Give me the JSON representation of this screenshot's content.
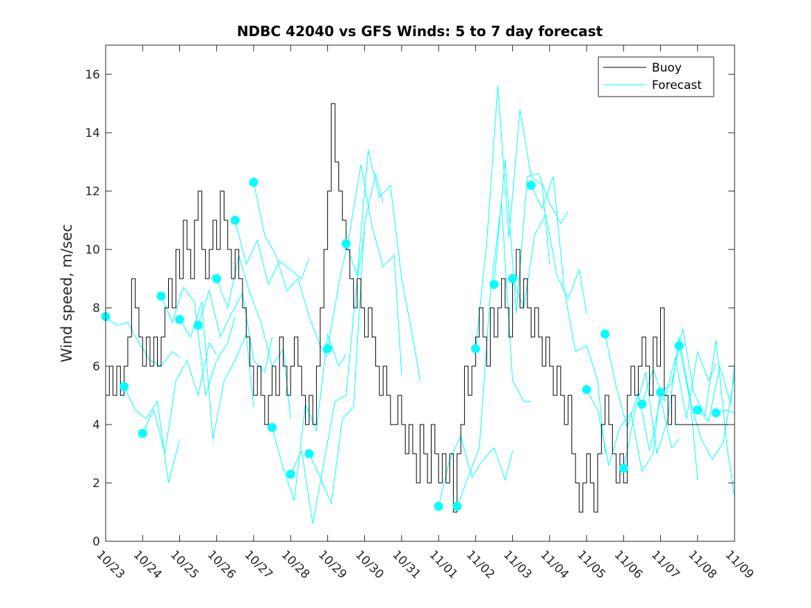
{
  "chart_data": {
    "type": "line",
    "title": "NDBC 42040 vs GFS Winds: 5 to 7 day forecast",
    "xlabel": "",
    "ylabel": "Wind speed, m/sec",
    "ylim": [
      0,
      17
    ],
    "yticks": [
      0,
      2,
      4,
      6,
      8,
      10,
      12,
      14,
      16
    ],
    "xlim": [
      0,
      17
    ],
    "x_tick_labels": [
      "10/23",
      "10/24",
      "10/25",
      "10/26",
      "10/27",
      "10/28",
      "10/29",
      "10/30",
      "10/31",
      "11/01",
      "11/02",
      "11/03",
      "11/04",
      "11/05",
      "11/06",
      "11/07",
      "11/08",
      "11/09"
    ],
    "x_units": "days since 10/23",
    "legend": {
      "position": "top-right",
      "entries": [
        "Buoy",
        "Forecast"
      ]
    },
    "colors": {
      "buoy": "#000000",
      "forecast": "#00FFFF",
      "axis": "#262626"
    },
    "buoy": {
      "name": "Buoy",
      "x": [
        0,
        0.1,
        0.2,
        0.3,
        0.4,
        0.5,
        0.6,
        0.7,
        0.8,
        0.9,
        1.0,
        1.1,
        1.2,
        1.3,
        1.4,
        1.5,
        1.6,
        1.7,
        1.8,
        1.9,
        2.0,
        2.1,
        2.2,
        2.3,
        2.4,
        2.5,
        2.6,
        2.7,
        2.8,
        2.9,
        3.0,
        3.1,
        3.2,
        3.3,
        3.4,
        3.5,
        3.6,
        3.7,
        3.8,
        3.9,
        4.0,
        4.1,
        4.2,
        4.3,
        4.4,
        4.5,
        4.6,
        4.7,
        4.8,
        4.9,
        5.0,
        5.1,
        5.2,
        5.3,
        5.4,
        5.5,
        5.6,
        5.7,
        5.8,
        5.9,
        6.0,
        6.1,
        6.2,
        6.3,
        6.4,
        6.5,
        6.6,
        6.7,
        6.8,
        6.9,
        7.0,
        7.1,
        7.2,
        7.3,
        7.4,
        7.5,
        7.6,
        7.7,
        7.8,
        7.9,
        8.0,
        8.1,
        8.2,
        8.3,
        8.4,
        8.5,
        8.6,
        8.7,
        8.8,
        8.9,
        9.0,
        9.1,
        9.2,
        9.3,
        9.4,
        9.5,
        9.6,
        9.7,
        9.8,
        9.9,
        10.0,
        10.1,
        10.2,
        10.3,
        10.4,
        10.5,
        10.6,
        10.7,
        10.8,
        10.9,
        11.0,
        11.1,
        11.2,
        11.3,
        11.4,
        11.5,
        11.6,
        11.7,
        11.8,
        11.9,
        12.0,
        12.1,
        12.2,
        12.3,
        12.4,
        12.5,
        12.6,
        12.7,
        12.8,
        12.9,
        13.0,
        13.1,
        13.2,
        13.3,
        13.4,
        13.5,
        13.6,
        13.7,
        13.8,
        13.9,
        14.0,
        14.1,
        14.2,
        14.3,
        14.4,
        14.5,
        14.6,
        14.7,
        14.8,
        14.9,
        15.0,
        15.1,
        15.2,
        15.3,
        15.4,
        15.5,
        15.6,
        15.7,
        15.8,
        15.9,
        16.0,
        16.1,
        16.2,
        16.3,
        16.4,
        16.5,
        16.6,
        16.7,
        16.8,
        16.9,
        17.0
      ],
      "y": [
        5,
        6,
        5,
        6,
        5,
        6,
        7,
        9,
        8,
        7,
        6,
        7,
        6,
        7,
        6,
        7,
        8,
        9,
        8,
        10,
        9,
        11,
        10,
        9,
        11,
        12,
        10,
        9,
        10,
        11,
        10,
        12,
        11,
        10,
        9,
        10,
        9,
        8,
        7,
        6,
        5,
        6,
        5,
        4,
        5,
        6,
        5,
        7,
        6,
        5,
        6,
        7,
        6,
        5,
        4,
        5,
        4,
        6,
        8,
        10,
        12,
        15,
        13,
        12,
        11,
        10,
        9,
        8,
        9,
        8,
        7,
        8,
        7,
        6,
        5,
        6,
        5,
        4,
        4,
        5,
        4,
        3,
        4,
        3,
        2,
        4,
        3,
        2,
        4,
        3,
        2,
        3,
        2,
        3,
        1,
        3,
        4,
        6,
        5,
        6,
        7,
        8,
        7,
        6,
        8,
        7,
        8,
        9,
        8,
        7,
        9,
        10,
        8,
        9,
        8,
        7,
        8,
        7,
        6,
        7,
        6,
        5,
        6,
        5,
        4,
        5,
        3,
        2,
        1,
        2,
        3,
        2,
        1,
        3,
        4,
        5,
        4,
        3,
        2,
        3,
        2,
        5,
        6,
        5,
        6,
        7,
        6,
        5,
        7,
        6,
        8,
        5,
        4,
        5,
        4,
        4,
        4,
        4,
        4,
        4,
        4,
        4,
        4,
        4,
        4,
        4,
        4,
        4,
        4,
        4,
        4
      ]
    },
    "forecasts": [
      {
        "x": [
          0,
          0.3,
          0.6,
          0.9,
          1.2,
          1.5,
          1.8,
          2.0
        ],
        "y": [
          7.7,
          7.4,
          7.5,
          6.8,
          6.2,
          6.0,
          6.5,
          6.3
        ]
      },
      {
        "x": [
          0.5,
          0.8,
          1.1,
          1.4,
          1.7,
          2.0
        ],
        "y": [
          5.3,
          4.5,
          4.2,
          4.8,
          2.0,
          3.5
        ]
      },
      {
        "x": [
          1.0,
          1.3,
          1.6,
          1.9,
          2.2,
          2.5,
          2.8,
          3.0
        ],
        "y": [
          3.7,
          4.5,
          3.0,
          5.5,
          6.2,
          5.0,
          6.8,
          6.4
        ]
      },
      {
        "x": [
          1.5,
          1.8,
          2.1,
          2.4,
          2.7,
          3.0,
          3.3,
          3.5
        ],
        "y": [
          8.4,
          7.5,
          8.7,
          8.2,
          5.0,
          6.2,
          6.8,
          7.7
        ]
      },
      {
        "x": [
          2.0,
          2.3,
          2.6,
          2.9,
          3.2,
          3.5,
          3.8,
          4.0
        ],
        "y": [
          7.6,
          7.0,
          8.2,
          3.5,
          5.5,
          6.2,
          7.1,
          4.6
        ]
      },
      {
        "x": [
          2.5,
          2.8,
          3.1,
          3.4,
          3.7,
          4.0,
          4.3,
          4.5
        ],
        "y": [
          7.4,
          8.6,
          7.0,
          7.8,
          8.5,
          6.2,
          5.8,
          7.0
        ]
      },
      {
        "x": [
          3.0,
          3.3,
          3.6,
          3.9,
          4.2,
          4.5,
          4.8,
          5.0
        ],
        "y": [
          9.0,
          8.0,
          9.8,
          8.5,
          7.5,
          6.0,
          6.6,
          4.2
        ]
      },
      {
        "x": [
          3.5,
          3.8,
          4.1,
          4.4,
          4.7,
          5.0,
          5.3,
          5.5
        ],
        "y": [
          11.0,
          9.5,
          10.3,
          8.8,
          9.6,
          9.3,
          9.0,
          9.7
        ]
      },
      {
        "x": [
          4.0,
          4.3,
          4.6,
          4.9,
          5.2,
          5.5,
          5.8,
          6.0
        ],
        "y": [
          12.3,
          10.5,
          9.8,
          8.6,
          9.0,
          7.7,
          6.7,
          6.3
        ]
      },
      {
        "x": [
          4.5,
          4.8,
          5.1,
          5.4,
          5.7,
          6.0,
          6.3,
          6.5
        ],
        "y": [
          3.9,
          2.5,
          1.4,
          4.7,
          3.8,
          7.1,
          6.0,
          6.4
        ]
      },
      {
        "x": [
          5.0,
          5.3,
          5.6,
          5.9,
          6.2,
          6.5,
          6.8,
          7.0
        ],
        "y": [
          2.3,
          3.1,
          0.6,
          2.7,
          4.8,
          5.0,
          9.0,
          10.6
        ]
      },
      {
        "x": [
          5.5,
          5.8,
          6.1,
          6.4,
          6.7,
          7.0,
          7.3,
          7.5
        ],
        "y": [
          3.0,
          2.2,
          1.3,
          4.2,
          4.6,
          10.9,
          12.6,
          11.6
        ]
      },
      {
        "x": [
          6.0,
          6.3,
          6.6,
          6.9,
          7.2,
          7.5,
          7.8,
          8.0
        ],
        "y": [
          6.6,
          8.8,
          10.6,
          12.9,
          10.8,
          9.4,
          9.8,
          5.7
        ]
      },
      {
        "x": [
          6.5,
          6.8,
          7.1,
          7.4,
          7.7,
          8.0,
          8.3,
          8.5
        ],
        "y": [
          10.2,
          9.1,
          13.4,
          11.8,
          12.2,
          9.0,
          7.0,
          5.5
        ]
      },
      {
        "x": [
          9.0,
          9.3,
          9.6,
          9.9,
          10.2,
          10.5,
          10.8,
          11.0
        ],
        "y": [
          1.2,
          2.8,
          3.6,
          2.2,
          2.8,
          3.2,
          2.1,
          3.1
        ]
      },
      {
        "x": [
          9.5,
          9.8,
          10.1,
          10.4,
          10.7,
          11.0,
          11.3,
          11.5
        ],
        "y": [
          1.2,
          2.2,
          3.2,
          8.5,
          11.6,
          5.5,
          4.8,
          4.8
        ]
      },
      {
        "x": [
          10.0,
          10.3,
          10.6,
          10.9,
          11.2,
          11.5,
          11.8,
          12.0
        ],
        "y": [
          6.6,
          10.2,
          15.6,
          10.4,
          14.8,
          12.5,
          12.2,
          9.5
        ]
      },
      {
        "x": [
          10.5,
          10.8,
          11.1,
          11.4,
          11.7,
          12.0,
          12.3,
          12.5
        ],
        "y": [
          8.8,
          13.1,
          7.8,
          12.5,
          12.6,
          11.6,
          10.9,
          11.3
        ]
      },
      {
        "x": [
          11.0,
          11.3,
          11.6,
          11.9,
          12.2,
          12.5,
          12.8,
          13.0
        ],
        "y": [
          9.0,
          8.0,
          10.5,
          11.2,
          9.1,
          8.3,
          9.3,
          7.8
        ]
      },
      {
        "x": [
          11.5,
          11.8,
          12.1,
          12.4,
          12.7,
          13.0,
          13.3,
          13.5
        ],
        "y": [
          12.2,
          11.4,
          12.5,
          8.6,
          6.5,
          6.7,
          5.5,
          3.0
        ]
      },
      {
        "x": [
          13.0,
          13.3,
          13.6,
          13.9,
          14.2,
          14.5,
          14.8,
          15.0
        ],
        "y": [
          5.2,
          4.5,
          2.6,
          3.9,
          4.4,
          2.4,
          3.0,
          5.3
        ]
      },
      {
        "x": [
          13.5,
          13.8,
          14.1,
          14.4,
          14.7,
          15.0,
          15.3,
          15.5
        ],
        "y": [
          7.1,
          5.3,
          3.9,
          5.1,
          3.1,
          4.9,
          3.2,
          3.5
        ]
      },
      {
        "x": [
          14.0,
          14.3,
          14.6,
          14.9,
          15.2,
          15.5,
          15.8,
          16.0
        ],
        "y": [
          2.5,
          4.4,
          5.8,
          3.0,
          4.2,
          7.0,
          4.9,
          2.1
        ]
      },
      {
        "x": [
          14.5,
          14.8,
          15.1,
          15.4,
          15.7,
          16.0,
          16.3,
          16.5
        ],
        "y": [
          4.7,
          5.9,
          4.8,
          6.3,
          4.2,
          6.5,
          5.5,
          6.1
        ]
      },
      {
        "x": [
          15.0,
          15.3,
          15.6,
          15.9,
          16.2,
          16.5,
          16.8,
          17.0
        ],
        "y": [
          5.1,
          5.4,
          7.3,
          5.1,
          4.3,
          6.9,
          3.2,
          1.5
        ]
      },
      {
        "x": [
          15.5,
          15.8,
          16.1,
          16.4,
          16.7,
          17.0
        ],
        "y": [
          6.7,
          4.8,
          3.5,
          2.8,
          3.4,
          5.7
        ]
      },
      {
        "x": [
          16.0,
          16.3,
          16.6,
          16.9,
          17.0
        ],
        "y": [
          4.5,
          4.1,
          6.0,
          4.7,
          6.1
        ]
      },
      {
        "x": [
          16.5,
          16.8,
          17.0
        ],
        "y": [
          4.4,
          4.5,
          4.4
        ]
      }
    ],
    "forecast_markers": {
      "x": [
        0,
        0.5,
        1.0,
        1.5,
        2.0,
        2.5,
        3.0,
        3.5,
        4.0,
        4.5,
        5.0,
        5.5,
        6.0,
        6.5,
        9.0,
        9.5,
        10.0,
        10.5,
        11.0,
        11.5,
        13.0,
        13.5,
        14.0,
        14.5,
        15.0,
        15.5,
        16.0,
        16.5
      ],
      "y": [
        7.7,
        5.3,
        3.7,
        8.4,
        7.6,
        7.4,
        9.0,
        11.0,
        12.3,
        3.9,
        2.3,
        3.0,
        6.6,
        10.2,
        1.2,
        1.2,
        6.6,
        8.8,
        9.0,
        12.2,
        5.2,
        7.1,
        2.5,
        4.7,
        5.1,
        6.7,
        4.5,
        4.4
      ]
    }
  }
}
